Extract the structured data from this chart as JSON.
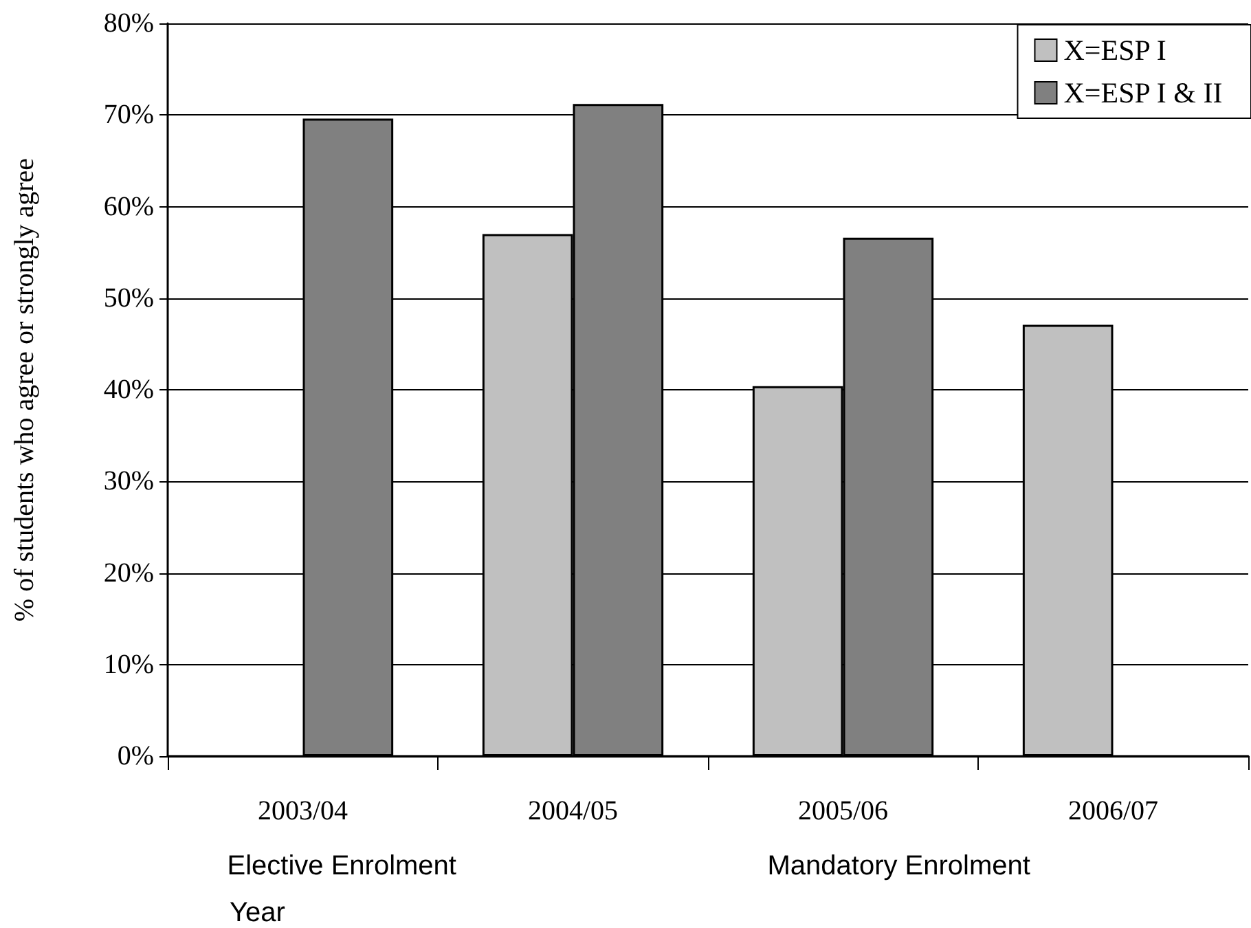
{
  "chart_data": {
    "type": "bar",
    "ylabel": "% of students who agree or strongly agree",
    "xlabel": "Year",
    "categories": [
      "2003/04",
      "2004/05",
      "2005/06",
      "2006/07"
    ],
    "series": [
      {
        "name": "X=ESP I",
        "color": "#c0c0c0",
        "values": [
          null,
          57.0,
          40.4,
          47.1
        ]
      },
      {
        "name": "X=ESP I & II",
        "color": "#808080",
        "values": [
          69.6,
          71.2,
          56.6,
          null
        ]
      }
    ],
    "ylim": [
      0,
      80
    ],
    "yticks": [
      {
        "value": 0,
        "label": "0%"
      },
      {
        "value": 10,
        "label": "10%"
      },
      {
        "value": 20,
        "label": "20%"
      },
      {
        "value": 30,
        "label": "30%"
      },
      {
        "value": 40,
        "label": "40%"
      },
      {
        "value": 50,
        "label": "50%"
      },
      {
        "value": 60,
        "label": "60%"
      },
      {
        "value": 70,
        "label": "70%"
      },
      {
        "value": 80,
        "label": "80%"
      }
    ],
    "grid": "y",
    "legend": "top right",
    "annotations": [
      "Elective Enrolment",
      "Mandatory Enrolment"
    ]
  }
}
